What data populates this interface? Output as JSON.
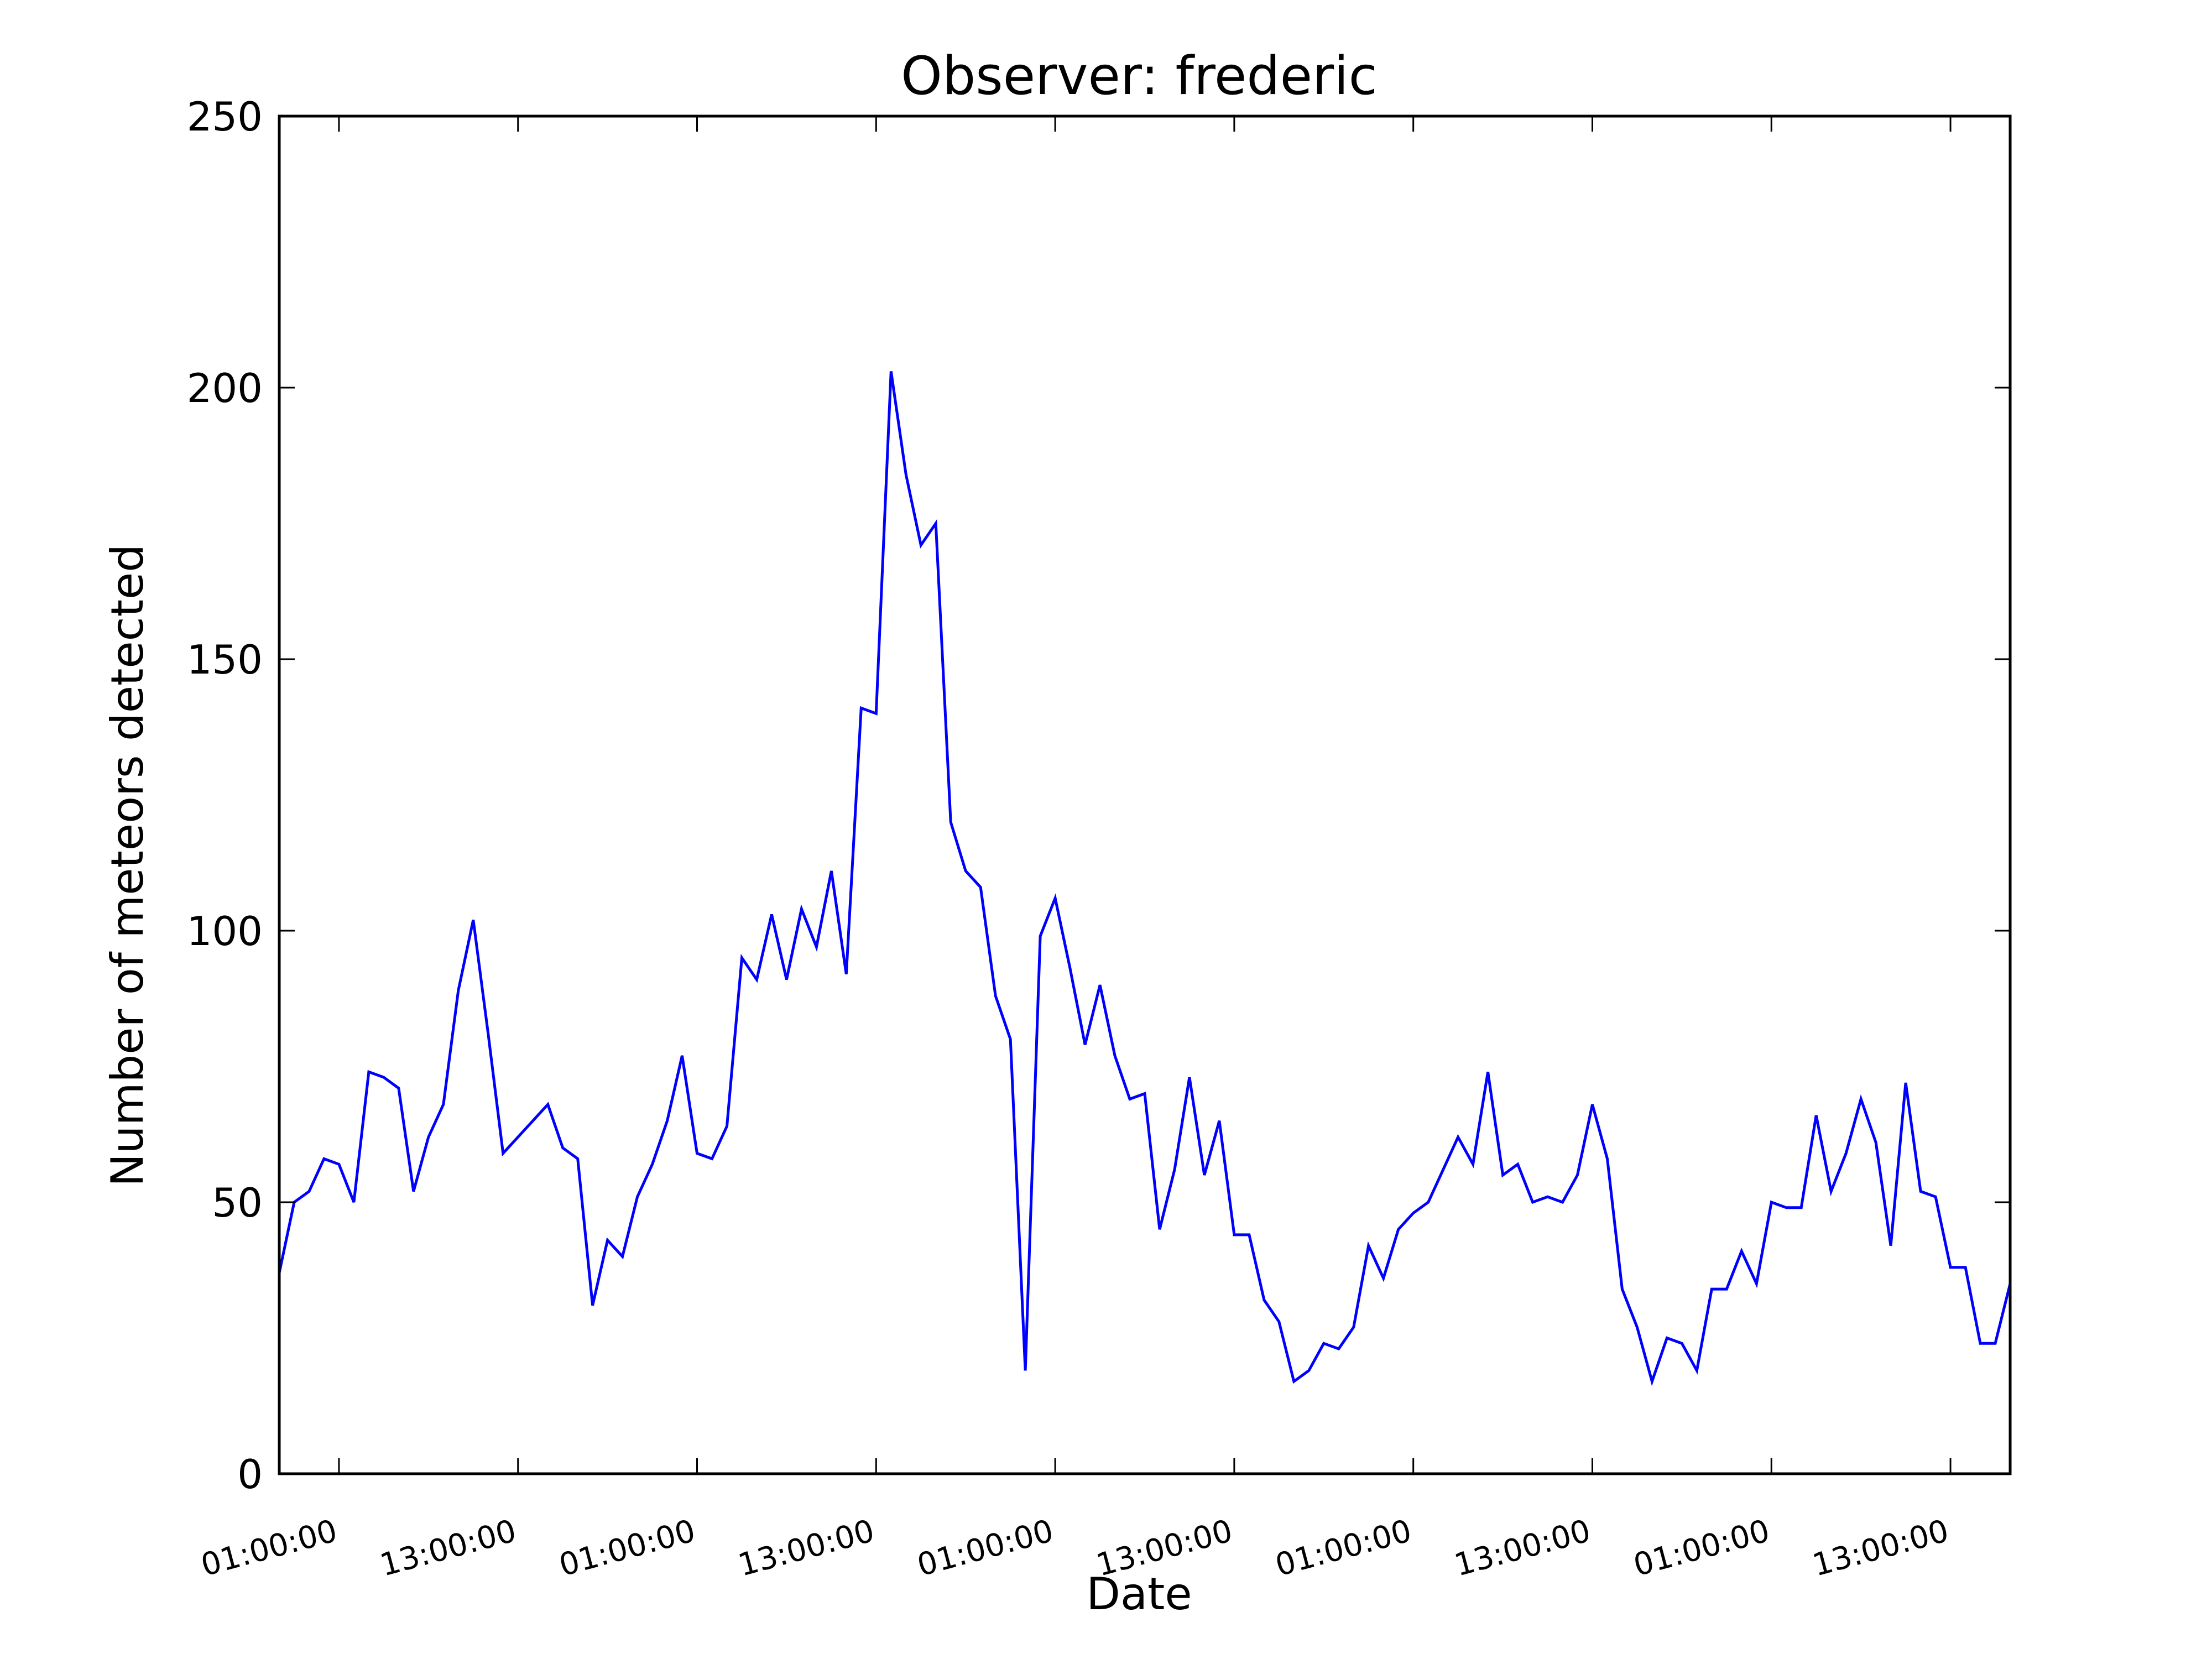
{
  "chart_data": {
    "type": "line",
    "title": "Observer: frederic",
    "xlabel": "Date",
    "ylabel": "Number of meteors detected",
    "ylim": [
      0,
      250
    ],
    "yticks": [
      0,
      50,
      100,
      150,
      200,
      250
    ],
    "xlim_hours": [
      -4,
      112
    ],
    "xticks": [
      {
        "label": "01:00:00",
        "hour": 0
      },
      {
        "label": "13:00:00",
        "hour": 12
      },
      {
        "label": "01:00:00",
        "hour": 24
      },
      {
        "label": "13:00:00",
        "hour": 36
      },
      {
        "label": "01:00:00",
        "hour": 48
      },
      {
        "label": "13:00:00",
        "hour": 60
      },
      {
        "label": "01:00:00",
        "hour": 72
      },
      {
        "label": "13:00:00",
        "hour": 84
      },
      {
        "label": "01:00:00",
        "hour": 96
      },
      {
        "label": "13:00:00",
        "hour": 108
      }
    ],
    "grid": false,
    "legend": "none",
    "series": [
      {
        "color": "#0000ff",
        "points": [
          [
            -4,
            37
          ],
          [
            -3,
            50
          ],
          [
            -2,
            52
          ],
          [
            -1,
            58
          ],
          [
            0,
            57
          ],
          [
            1,
            50
          ],
          [
            2,
            74
          ],
          [
            3,
            73
          ],
          [
            4,
            71
          ],
          [
            5,
            52
          ],
          [
            6,
            62
          ],
          [
            7,
            68
          ],
          [
            8,
            89
          ],
          [
            9,
            102
          ],
          [
            10,
            81
          ],
          [
            11,
            59
          ],
          [
            14,
            68
          ],
          [
            15,
            60
          ],
          [
            16,
            58
          ],
          [
            17,
            31
          ],
          [
            18,
            43
          ],
          [
            19,
            40
          ],
          [
            20,
            51
          ],
          [
            21,
            57
          ],
          [
            22,
            65
          ],
          [
            23,
            77
          ],
          [
            24,
            59
          ],
          [
            25,
            58
          ],
          [
            26,
            64
          ],
          [
            27,
            95
          ],
          [
            28,
            91
          ],
          [
            29,
            103
          ],
          [
            30,
            91
          ],
          [
            31,
            104
          ],
          [
            32,
            97
          ],
          [
            33,
            111
          ],
          [
            34,
            92
          ],
          [
            35,
            141
          ],
          [
            36,
            140
          ],
          [
            37,
            203
          ],
          [
            38,
            184
          ],
          [
            39,
            171
          ],
          [
            40,
            175
          ],
          [
            41,
            120
          ],
          [
            42,
            111
          ],
          [
            43,
            108
          ],
          [
            44,
            88
          ],
          [
            45,
            80
          ],
          [
            46,
            19
          ],
          [
            47,
            99
          ],
          [
            48,
            106
          ],
          [
            49,
            93
          ],
          [
            50,
            79
          ],
          [
            51,
            90
          ],
          [
            52,
            77
          ],
          [
            53,
            69
          ],
          [
            54,
            70
          ],
          [
            55,
            45
          ],
          [
            56,
            56
          ],
          [
            57,
            73
          ],
          [
            58,
            55
          ],
          [
            59,
            65
          ],
          [
            60,
            44
          ],
          [
            61,
            44
          ],
          [
            62,
            32
          ],
          [
            63,
            28
          ],
          [
            64,
            17
          ],
          [
            65,
            19
          ],
          [
            66,
            24
          ],
          [
            67,
            23
          ],
          [
            68,
            27
          ],
          [
            69,
            42
          ],
          [
            70,
            36
          ],
          [
            71,
            45
          ],
          [
            72,
            48
          ],
          [
            73,
            50
          ],
          [
            74,
            56
          ],
          [
            75,
            62
          ],
          [
            76,
            57
          ],
          [
            77,
            74
          ],
          [
            78,
            55
          ],
          [
            79,
            57
          ],
          [
            80,
            50
          ],
          [
            81,
            51
          ],
          [
            82,
            50
          ],
          [
            83,
            55
          ],
          [
            84,
            68
          ],
          [
            85,
            58
          ],
          [
            86,
            34
          ],
          [
            87,
            27
          ],
          [
            88,
            17
          ],
          [
            89,
            25
          ],
          [
            90,
            24
          ],
          [
            91,
            19
          ],
          [
            92,
            34
          ],
          [
            93,
            34
          ],
          [
            94,
            41
          ],
          [
            95,
            35
          ],
          [
            96,
            50
          ],
          [
            97,
            49
          ],
          [
            98,
            49
          ],
          [
            99,
            66
          ],
          [
            100,
            52
          ],
          [
            101,
            59
          ],
          [
            102,
            69
          ],
          [
            103,
            61
          ],
          [
            104,
            42
          ],
          [
            105,
            72
          ],
          [
            106,
            52
          ],
          [
            107,
            51
          ],
          [
            108,
            38
          ],
          [
            109,
            38
          ],
          [
            110,
            24
          ],
          [
            111,
            24
          ],
          [
            112,
            35
          ]
        ]
      }
    ]
  }
}
